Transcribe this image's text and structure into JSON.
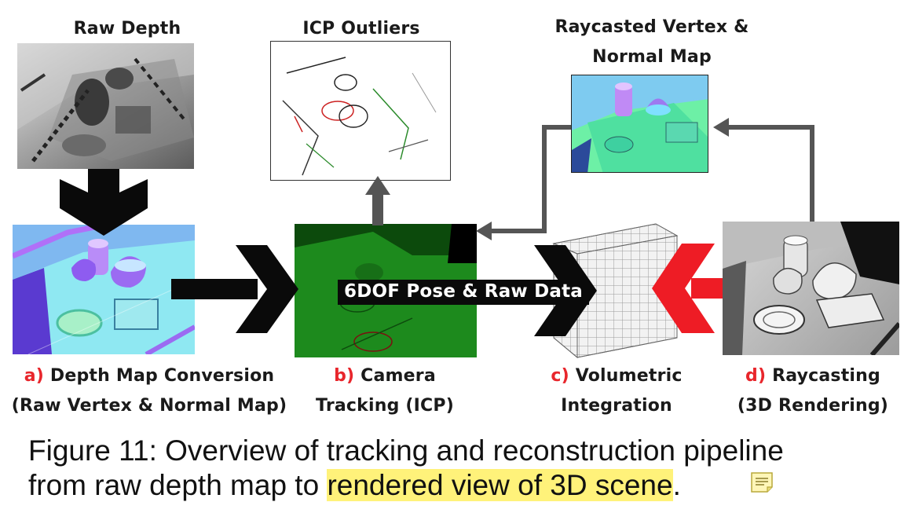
{
  "diagram": {
    "labels": {
      "raw_depth": "Raw Depth",
      "icp_outliers": "ICP Outliers",
      "raycast_line1": "Raycasted Vertex &",
      "raycast_line2": "Normal Map",
      "pose_text": "6DOF Pose & Raw Data"
    },
    "steps": {
      "a": {
        "letter": "a)",
        "line1": "Depth Map Conversion",
        "line2": "(Raw Vertex & Normal Map)"
      },
      "b": {
        "letter": "b)",
        "line1": "Camera",
        "line2": "Tracking (ICP)"
      },
      "c": {
        "letter": "c)",
        "line1": "Volumetric",
        "line2": "Integration"
      },
      "d": {
        "letter": "d)",
        "line1": "Raycasting",
        "line2": "(3D Rendering)"
      }
    },
    "colors": {
      "step_letter": "#e8262c",
      "arrow_black": "#0a0a0a",
      "arrow_red": "#ee1c25",
      "connector_gray": "#555555",
      "tracking_green": "#1e8a1e",
      "normal_cyan": "#8fe8f2",
      "normal_purple": "#9a5cf0",
      "raycast_green": "#5ef0a0"
    }
  },
  "caption": {
    "line1": "Figure 11: Overview of tracking and reconstruction pipeline",
    "line2_prefix": "from raw depth map to ",
    "line2_highlight": "rendered view of 3D scene",
    "line2_suffix": "."
  },
  "annotation": {
    "icon": "sticky-note-icon"
  }
}
